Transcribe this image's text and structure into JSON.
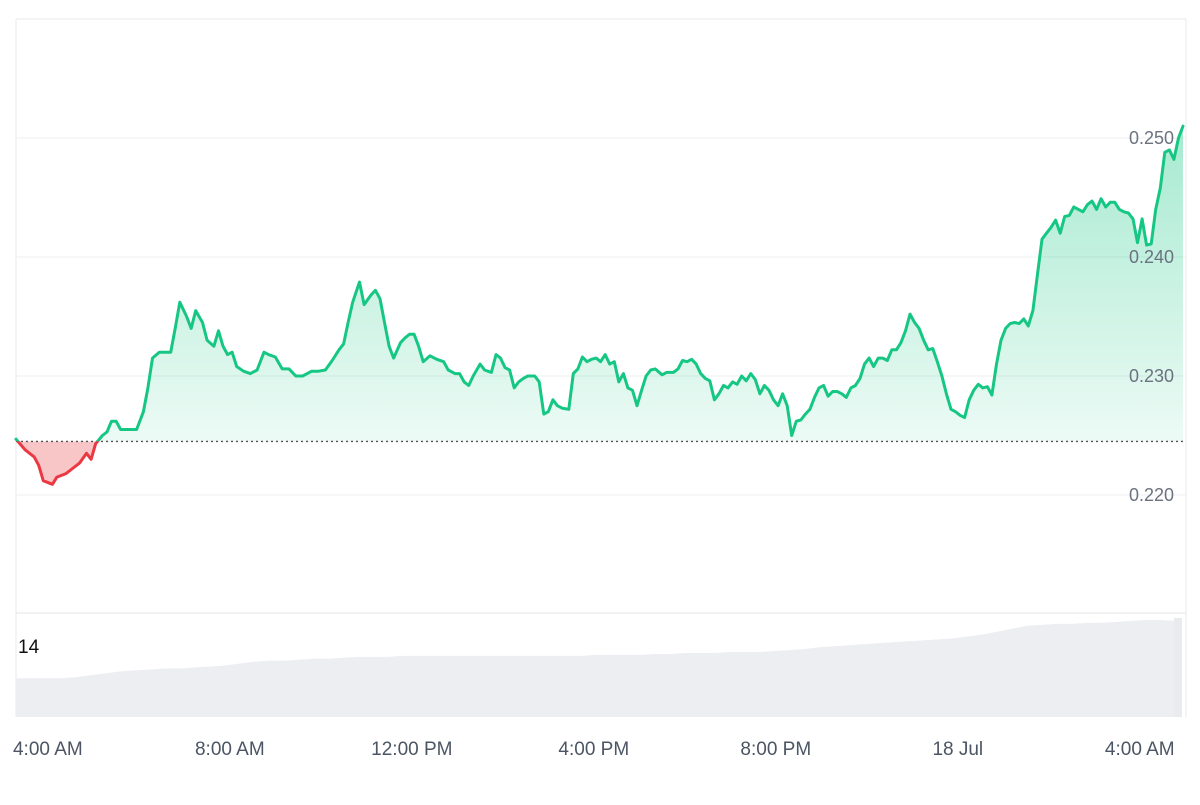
{
  "chart_data": {
    "type": "area",
    "baseline": 0.2245,
    "y_ticks": [
      {
        "value": 0.25,
        "label": "0.250"
      },
      {
        "value": 0.24,
        "label": "0.240"
      },
      {
        "value": 0.23,
        "label": "0.230"
      },
      {
        "value": 0.22,
        "label": "0.220"
      }
    ],
    "ylim": [
      0.21,
      0.26
    ],
    "xlim": [
      0,
      25.65
    ],
    "x_ticks": [
      {
        "hours": 0.7,
        "label": "4:00 AM"
      },
      {
        "hours": 4.7,
        "label": "8:00 AM"
      },
      {
        "hours": 8.7,
        "label": "12:00 PM"
      },
      {
        "hours": 12.7,
        "label": "4:00 PM"
      },
      {
        "hours": 16.7,
        "label": "8:00 PM"
      },
      {
        "hours": 20.7,
        "label": "18 Jul"
      },
      {
        "hours": 24.7,
        "label": "4:00 AM"
      }
    ],
    "series": [
      {
        "points": [
          [
            0.0,
            0.2247
          ],
          [
            0.2,
            0.2238
          ],
          [
            0.4,
            0.2232
          ],
          [
            0.5,
            0.2225
          ],
          [
            0.6,
            0.2212
          ],
          [
            0.8,
            0.2209
          ],
          [
            0.9,
            0.2215
          ],
          [
            1.1,
            0.2218
          ],
          [
            1.2,
            0.2221
          ],
          [
            1.4,
            0.2227
          ],
          [
            1.55,
            0.2235
          ],
          [
            1.65,
            0.223
          ],
          [
            1.75,
            0.2243
          ],
          [
            1.9,
            0.225
          ],
          [
            2.0,
            0.2253
          ],
          [
            2.1,
            0.2262
          ],
          [
            2.2,
            0.2262
          ],
          [
            2.3,
            0.2255
          ],
          [
            2.5,
            0.2255
          ],
          [
            2.65,
            0.2255
          ],
          [
            2.8,
            0.227
          ],
          [
            2.9,
            0.229
          ],
          [
            3.0,
            0.2315
          ],
          [
            3.15,
            0.232
          ],
          [
            3.3,
            0.232
          ],
          [
            3.4,
            0.232
          ],
          [
            3.5,
            0.234
          ],
          [
            3.6,
            0.2362
          ],
          [
            3.75,
            0.235
          ],
          [
            3.85,
            0.234
          ],
          [
            3.95,
            0.2355
          ],
          [
            4.1,
            0.2345
          ],
          [
            4.2,
            0.233
          ],
          [
            4.35,
            0.2325
          ],
          [
            4.45,
            0.2338
          ],
          [
            4.55,
            0.2325
          ],
          [
            4.65,
            0.2318
          ],
          [
            4.75,
            0.232
          ],
          [
            4.85,
            0.2308
          ],
          [
            5.0,
            0.2304
          ],
          [
            5.15,
            0.2302
          ],
          [
            5.3,
            0.2305
          ],
          [
            5.45,
            0.232
          ],
          [
            5.55,
            0.2318
          ],
          [
            5.7,
            0.2316
          ],
          [
            5.85,
            0.2306
          ],
          [
            6.0,
            0.2306
          ],
          [
            6.15,
            0.23
          ],
          [
            6.3,
            0.23
          ],
          [
            6.5,
            0.2304
          ],
          [
            6.65,
            0.2304
          ],
          [
            6.8,
            0.2305
          ],
          [
            6.95,
            0.2313
          ],
          [
            7.1,
            0.2322
          ],
          [
            7.2,
            0.2327
          ],
          [
            7.3,
            0.2345
          ],
          [
            7.4,
            0.2362
          ],
          [
            7.55,
            0.2379
          ],
          [
            7.65,
            0.236
          ],
          [
            7.8,
            0.2368
          ],
          [
            7.9,
            0.2372
          ],
          [
            8.0,
            0.2365
          ],
          [
            8.1,
            0.2345
          ],
          [
            8.2,
            0.2325
          ],
          [
            8.3,
            0.2315
          ],
          [
            8.45,
            0.2328
          ],
          [
            8.55,
            0.2332
          ],
          [
            8.65,
            0.2335
          ],
          [
            8.75,
            0.2335
          ],
          [
            8.85,
            0.2325
          ],
          [
            8.95,
            0.2312
          ],
          [
            9.1,
            0.2317
          ],
          [
            9.25,
            0.2314
          ],
          [
            9.4,
            0.2312
          ],
          [
            9.5,
            0.2305
          ],
          [
            9.65,
            0.2302
          ],
          [
            9.75,
            0.2302
          ],
          [
            9.85,
            0.2295
          ],
          [
            9.95,
            0.2292
          ],
          [
            10.05,
            0.23
          ],
          [
            10.2,
            0.231
          ],
          [
            10.3,
            0.2305
          ],
          [
            10.45,
            0.2303
          ],
          [
            10.55,
            0.2318
          ],
          [
            10.65,
            0.2315
          ],
          [
            10.75,
            0.2307
          ],
          [
            10.85,
            0.2305
          ],
          [
            10.95,
            0.229
          ],
          [
            11.05,
            0.2295
          ],
          [
            11.15,
            0.2298
          ],
          [
            11.25,
            0.23
          ],
          [
            11.4,
            0.23
          ],
          [
            11.5,
            0.2295
          ],
          [
            11.6,
            0.2268
          ],
          [
            11.7,
            0.227
          ],
          [
            11.8,
            0.228
          ],
          [
            11.9,
            0.2275
          ],
          [
            12.0,
            0.2273
          ],
          [
            12.15,
            0.2272
          ],
          [
            12.25,
            0.2302
          ],
          [
            12.35,
            0.2306
          ],
          [
            12.45,
            0.2316
          ],
          [
            12.55,
            0.2312
          ],
          [
            12.65,
            0.2314
          ],
          [
            12.75,
            0.2315
          ],
          [
            12.85,
            0.2312
          ],
          [
            12.95,
            0.2318
          ],
          [
            13.05,
            0.231
          ],
          [
            13.15,
            0.2312
          ],
          [
            13.25,
            0.2295
          ],
          [
            13.35,
            0.2302
          ],
          [
            13.45,
            0.229
          ],
          [
            13.55,
            0.2288
          ],
          [
            13.65,
            0.2275
          ],
          [
            13.75,
            0.2288
          ],
          [
            13.85,
            0.23
          ],
          [
            13.95,
            0.2305
          ],
          [
            14.05,
            0.2306
          ],
          [
            14.2,
            0.2301
          ],
          [
            14.3,
            0.2303
          ],
          [
            14.45,
            0.2303
          ],
          [
            14.55,
            0.2306
          ],
          [
            14.65,
            0.2313
          ],
          [
            14.75,
            0.2312
          ],
          [
            14.85,
            0.2314
          ],
          [
            14.95,
            0.231
          ],
          [
            15.05,
            0.2302
          ],
          [
            15.15,
            0.2298
          ],
          [
            15.25,
            0.2296
          ],
          [
            15.35,
            0.228
          ],
          [
            15.45,
            0.2285
          ],
          [
            15.55,
            0.2292
          ],
          [
            15.65,
            0.229
          ],
          [
            15.75,
            0.2295
          ],
          [
            15.85,
            0.2293
          ],
          [
            15.95,
            0.23
          ],
          [
            16.05,
            0.2296
          ],
          [
            16.15,
            0.2302
          ],
          [
            16.25,
            0.2297
          ],
          [
            16.35,
            0.2285
          ],
          [
            16.45,
            0.2292
          ],
          [
            16.55,
            0.2288
          ],
          [
            16.65,
            0.228
          ],
          [
            16.75,
            0.2275
          ],
          [
            16.85,
            0.2285
          ],
          [
            16.95,
            0.2275
          ],
          [
            17.05,
            0.225
          ],
          [
            17.15,
            0.2262
          ],
          [
            17.25,
            0.2263
          ],
          [
            17.35,
            0.2268
          ],
          [
            17.45,
            0.2272
          ],
          [
            17.55,
            0.2282
          ],
          [
            17.65,
            0.229
          ],
          [
            17.75,
            0.2292
          ],
          [
            17.85,
            0.2283
          ],
          [
            17.95,
            0.2287
          ],
          [
            18.05,
            0.2287
          ],
          [
            18.15,
            0.2285
          ],
          [
            18.25,
            0.2282
          ],
          [
            18.35,
            0.229
          ],
          [
            18.45,
            0.2292
          ],
          [
            18.55,
            0.2298
          ],
          [
            18.65,
            0.231
          ],
          [
            18.75,
            0.2315
          ],
          [
            18.85,
            0.2308
          ],
          [
            18.95,
            0.2315
          ],
          [
            19.05,
            0.2315
          ],
          [
            19.15,
            0.2313
          ],
          [
            19.25,
            0.2322
          ],
          [
            19.35,
            0.2322
          ],
          [
            19.45,
            0.2328
          ],
          [
            19.55,
            0.2338
          ],
          [
            19.65,
            0.2352
          ],
          [
            19.75,
            0.2345
          ],
          [
            19.85,
            0.234
          ],
          [
            19.95,
            0.233
          ],
          [
            20.05,
            0.2322
          ],
          [
            20.15,
            0.2323
          ],
          [
            20.25,
            0.2312
          ],
          [
            20.35,
            0.23
          ],
          [
            20.45,
            0.2285
          ],
          [
            20.55,
            0.2272
          ],
          [
            20.65,
            0.227
          ],
          [
            20.75,
            0.2267
          ],
          [
            20.85,
            0.2265
          ],
          [
            20.95,
            0.228
          ],
          [
            21.05,
            0.2288
          ],
          [
            21.15,
            0.2293
          ],
          [
            21.25,
            0.229
          ],
          [
            21.35,
            0.2291
          ],
          [
            21.45,
            0.2284
          ],
          [
            21.55,
            0.231
          ],
          [
            21.65,
            0.233
          ],
          [
            21.75,
            0.234
          ],
          [
            21.85,
            0.2344
          ],
          [
            21.95,
            0.2345
          ],
          [
            22.05,
            0.2344
          ],
          [
            22.15,
            0.2348
          ],
          [
            22.25,
            0.2342
          ],
          [
            22.35,
            0.2355
          ],
          [
            22.45,
            0.2385
          ],
          [
            22.55,
            0.2415
          ],
          [
            22.65,
            0.242
          ],
          [
            22.75,
            0.2425
          ],
          [
            22.85,
            0.2431
          ],
          [
            22.95,
            0.242
          ],
          [
            23.05,
            0.2434
          ],
          [
            23.15,
            0.2435
          ],
          [
            23.25,
            0.2442
          ],
          [
            23.35,
            0.244
          ],
          [
            23.45,
            0.2438
          ],
          [
            23.55,
            0.2444
          ],
          [
            23.65,
            0.2447
          ],
          [
            23.75,
            0.244
          ],
          [
            23.85,
            0.2449
          ],
          [
            23.95,
            0.2442
          ],
          [
            24.05,
            0.2446
          ],
          [
            24.15,
            0.2446
          ],
          [
            24.25,
            0.244
          ],
          [
            24.35,
            0.2438
          ],
          [
            24.45,
            0.2437
          ],
          [
            24.55,
            0.2432
          ],
          [
            24.65,
            0.2412
          ],
          [
            24.75,
            0.2432
          ],
          [
            24.85,
            0.241
          ],
          [
            24.95,
            0.2411
          ],
          [
            25.05,
            0.244
          ],
          [
            25.15,
            0.2458
          ],
          [
            25.25,
            0.2488
          ],
          [
            25.35,
            0.249
          ],
          [
            25.45,
            0.2482
          ],
          [
            25.55,
            0.25
          ],
          [
            25.65,
            0.251
          ]
        ]
      }
    ],
    "volume": {
      "label": "14",
      "values": [
        0.4,
        0.4,
        0.4,
        0.4,
        0.41,
        0.43,
        0.45,
        0.47,
        0.48,
        0.49,
        0.5,
        0.5,
        0.51,
        0.52,
        0.53,
        0.55,
        0.57,
        0.58,
        0.58,
        0.59,
        0.6,
        0.6,
        0.61,
        0.62,
        0.62,
        0.62,
        0.63,
        0.63,
        0.63,
        0.63,
        0.63,
        0.63,
        0.63,
        0.63,
        0.63,
        0.63,
        0.63,
        0.63,
        0.63,
        0.64,
        0.64,
        0.64,
        0.64,
        0.65,
        0.65,
        0.66,
        0.66,
        0.66,
        0.67,
        0.67,
        0.67,
        0.68,
        0.69,
        0.7,
        0.72,
        0.73,
        0.74,
        0.75,
        0.76,
        0.77,
        0.78,
        0.79,
        0.8,
        0.81,
        0.83,
        0.85,
        0.88,
        0.91,
        0.94,
        0.95,
        0.96,
        0.96,
        0.97,
        0.97,
        0.98,
        0.99,
        1.0,
        1.0,
        0.99
      ]
    },
    "grid": true,
    "legend": "none",
    "up_color": "#16c784",
    "down_color": "#ea3943"
  }
}
